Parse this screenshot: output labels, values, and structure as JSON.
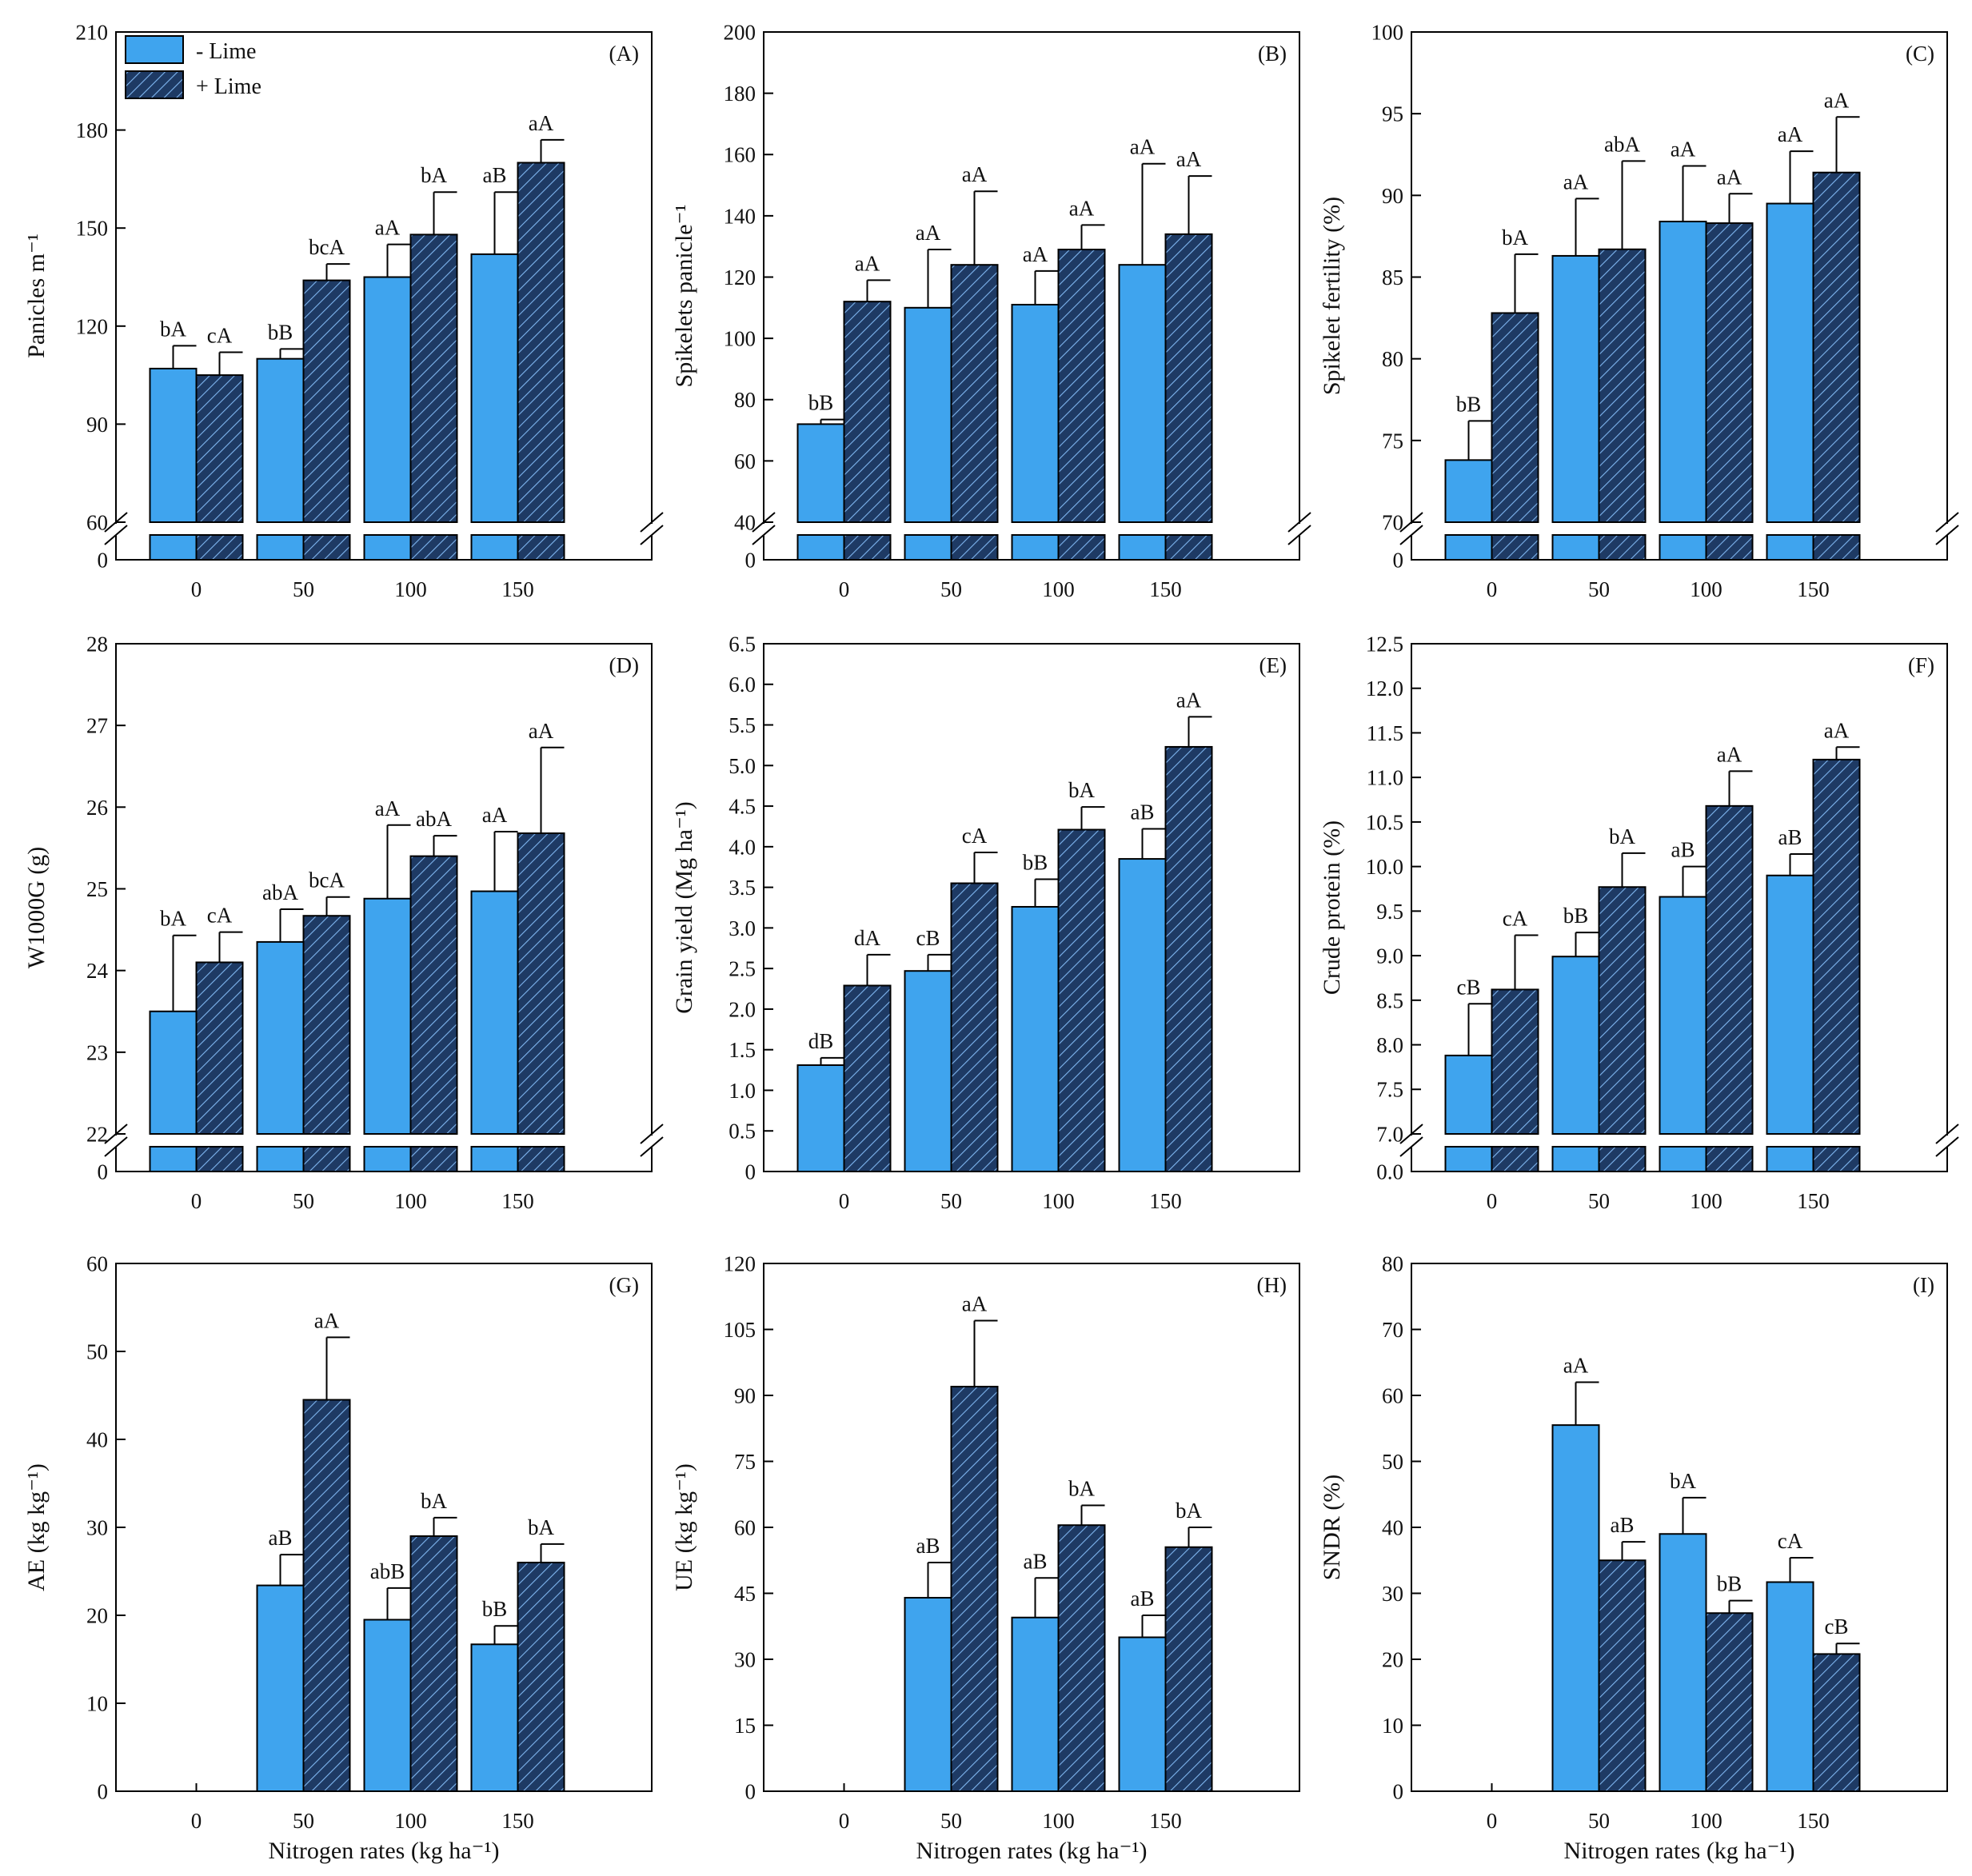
{
  "colors": {
    "minus_lime": "#3FA4EE",
    "plus_lime": "#1E3A64",
    "hatch_line": "#7FB6F0",
    "axis": "#000000"
  },
  "legend": {
    "minus": "- Lime",
    "plus": "+ Lime",
    "location": "top-left of panel A"
  },
  "chart_data": [
    {
      "id": "A",
      "panel_label": "(A)",
      "type": "bar",
      "ylabel": "Panicles m⁻¹",
      "xlabel": "",
      "categories": [
        "0",
        "50",
        "100",
        "150"
      ],
      "ylim": [
        60,
        210
      ],
      "yticks": [
        "60",
        "90",
        "120",
        "150",
        "180",
        "210"
      ],
      "axis_break": true,
      "series": [
        {
          "name": "- Lime",
          "values": [
            107,
            110,
            135,
            142
          ],
          "errors": [
            7,
            3,
            10,
            19
          ],
          "letters": [
            "bA",
            "bB",
            "aA",
            "aB"
          ]
        },
        {
          "name": "+ Lime",
          "values": [
            105,
            134,
            148,
            170
          ],
          "errors": [
            7,
            5,
            13,
            7
          ],
          "letters": [
            "cA",
            "bcA",
            "bA",
            "aA"
          ]
        }
      ]
    },
    {
      "id": "B",
      "panel_label": "(B)",
      "type": "bar",
      "ylabel": "Spikelets panicle⁻¹",
      "xlabel": "",
      "categories": [
        "0",
        "50",
        "100",
        "150"
      ],
      "ylim": [
        40,
        200
      ],
      "yticks": [
        "40",
        "60",
        "80",
        "100",
        "120",
        "140",
        "160",
        "180",
        "200"
      ],
      "axis_break": true,
      "series": [
        {
          "name": "- Lime",
          "values": [
            72,
            110,
            111,
            124
          ],
          "errors": [
            1.5,
            19,
            11,
            33
          ],
          "letters": [
            "bB",
            "aA",
            "aA",
            "aA"
          ]
        },
        {
          "name": "+ Lime",
          "values": [
            112,
            124,
            129,
            134
          ],
          "errors": [
            7,
            24,
            8,
            19
          ],
          "letters": [
            "aA",
            "aA",
            "aA",
            "aA"
          ]
        }
      ]
    },
    {
      "id": "C",
      "panel_label": "(C)",
      "type": "bar",
      "ylabel": "Spikelet fertility (%)",
      "xlabel": "",
      "categories": [
        "0",
        "50",
        "100",
        "150"
      ],
      "ylim": [
        70,
        100
      ],
      "yticks": [
        "70",
        "75",
        "80",
        "85",
        "90",
        "95",
        "100"
      ],
      "axis_break": true,
      "series": [
        {
          "name": "- Lime",
          "values": [
            73.8,
            86.3,
            88.4,
            89.5
          ],
          "errors": [
            2.4,
            3.5,
            3.4,
            3.2
          ],
          "letters": [
            "bB",
            "aA",
            "aA",
            "aA"
          ]
        },
        {
          "name": "+ Lime",
          "values": [
            82.8,
            86.7,
            88.3,
            91.4
          ],
          "errors": [
            3.6,
            5.4,
            1.8,
            3.4
          ],
          "letters": [
            "bA",
            "abA",
            "aA",
            "aA"
          ]
        }
      ]
    },
    {
      "id": "D",
      "panel_label": "(D)",
      "type": "bar",
      "ylabel": "W1000G (g)",
      "xlabel": "",
      "categories": [
        "0",
        "50",
        "100",
        "150"
      ],
      "ylim": [
        22,
        28
      ],
      "yticks": [
        "22",
        "23",
        "24",
        "25",
        "26",
        "27",
        "28"
      ],
      "axis_break": true,
      "series": [
        {
          "name": "- Lime",
          "values": [
            23.5,
            24.35,
            24.88,
            24.97
          ],
          "errors": [
            0.93,
            0.4,
            0.9,
            0.73
          ],
          "letters": [
            "bA",
            "abA",
            "aA",
            "aA"
          ]
        },
        {
          "name": "+ Lime",
          "values": [
            24.1,
            24.67,
            25.4,
            25.68
          ],
          "errors": [
            0.37,
            0.23,
            0.25,
            1.05
          ],
          "letters": [
            "cA",
            "bcA",
            "abA",
            "aA"
          ]
        }
      ]
    },
    {
      "id": "E",
      "panel_label": "(E)",
      "type": "bar",
      "ylabel": "Grain yield (Mg ha⁻¹)",
      "xlabel": "",
      "categories": [
        "0",
        "50",
        "100",
        "150"
      ],
      "ylim": [
        0,
        6.5
      ],
      "yticks": [
        "0",
        "0.5",
        "1.0",
        "1.5",
        "2.0",
        "2.5",
        "3.0",
        "3.5",
        "4.0",
        "4.5",
        "5.0",
        "5.5",
        "6.0",
        "6.5"
      ],
      "axis_break": false,
      "series": [
        {
          "name": "- Lime",
          "values": [
            1.31,
            2.47,
            3.26,
            3.85
          ],
          "errors": [
            0.09,
            0.2,
            0.34,
            0.37
          ],
          "letters": [
            "dB",
            "cB",
            "bB",
            "aB"
          ]
        },
        {
          "name": "+ Lime",
          "values": [
            2.29,
            3.55,
            4.21,
            5.23
          ],
          "errors": [
            0.38,
            0.38,
            0.28,
            0.37
          ],
          "letters": [
            "dA",
            "cA",
            "bA",
            "aA"
          ]
        }
      ]
    },
    {
      "id": "F",
      "panel_label": "(F)",
      "type": "bar",
      "ylabel": "Crude protein (%)",
      "xlabel": "",
      "categories": [
        "0",
        "50",
        "100",
        "150"
      ],
      "ylim": [
        7.0,
        12.5
      ],
      "yticks": [
        "7.0",
        "7.5",
        "8.0",
        "8.5",
        "9.0",
        "9.5",
        "10.0",
        "10.5",
        "11.0",
        "11.5",
        "12.0",
        "12.5"
      ],
      "axis_break": true,
      "series": [
        {
          "name": "- Lime",
          "values": [
            7.88,
            8.99,
            9.66,
            9.9
          ],
          "errors": [
            0.58,
            0.27,
            0.34,
            0.24
          ],
          "letters": [
            "cB",
            "bB",
            "aB",
            "aB"
          ]
        },
        {
          "name": "+ Lime",
          "values": [
            8.62,
            9.77,
            10.68,
            11.2
          ],
          "errors": [
            0.61,
            0.38,
            0.39,
            0.14
          ],
          "letters": [
            "cA",
            "bA",
            "aA",
            "aA"
          ]
        }
      ]
    },
    {
      "id": "G",
      "panel_label": "(G)",
      "type": "bar",
      "ylabel": "AE (kg kg⁻¹)",
      "xlabel": "Nitrogen rates (kg ha⁻¹)",
      "categories": [
        "0",
        "50",
        "100",
        "150"
      ],
      "ylim": [
        0,
        60
      ],
      "yticks": [
        "0",
        "10",
        "20",
        "30",
        "40",
        "50",
        "60"
      ],
      "axis_break": false,
      "series": [
        {
          "name": "- Lime",
          "values": [
            null,
            23.4,
            19.5,
            16.7
          ],
          "errors": [
            null,
            3.5,
            3.6,
            2.1
          ],
          "letters": [
            "",
            "aB",
            "abB",
            "bB"
          ]
        },
        {
          "name": "+ Lime",
          "values": [
            null,
            44.5,
            29.0,
            26.0
          ],
          "errors": [
            null,
            7.1,
            2.1,
            2.1
          ],
          "letters": [
            "",
            "aA",
            "bA",
            "bA"
          ]
        }
      ]
    },
    {
      "id": "H",
      "panel_label": "(H)",
      "type": "bar",
      "ylabel": "UE (kg kg⁻¹)",
      "xlabel": "Nitrogen rates (kg ha⁻¹)",
      "categories": [
        "0",
        "50",
        "100",
        "150"
      ],
      "ylim": [
        0,
        120
      ],
      "yticks": [
        "0",
        "15",
        "30",
        "45",
        "60",
        "75",
        "90",
        "105",
        "120"
      ],
      "axis_break": false,
      "series": [
        {
          "name": "- Lime",
          "values": [
            null,
            44,
            39.5,
            35
          ],
          "errors": [
            null,
            8,
            9,
            5
          ],
          "letters": [
            "",
            "aB",
            "aB",
            "aB"
          ]
        },
        {
          "name": "+ Lime",
          "values": [
            null,
            92,
            60.5,
            55.5
          ],
          "errors": [
            null,
            15,
            4.5,
            4.5
          ],
          "letters": [
            "",
            "aA",
            "bA",
            "bA"
          ]
        }
      ]
    },
    {
      "id": "I",
      "panel_label": "(I)",
      "type": "bar",
      "ylabel": "SNDR (%)",
      "xlabel": "Nitrogen rates (kg ha⁻¹)",
      "categories": [
        "0",
        "50",
        "100",
        "150"
      ],
      "ylim": [
        0,
        80
      ],
      "yticks": [
        "0",
        "10",
        "20",
        "30",
        "40",
        "50",
        "60",
        "70",
        "80"
      ],
      "axis_break": false,
      "series": [
        {
          "name": "- Lime",
          "values": [
            null,
            55.5,
            39.0,
            31.7
          ],
          "errors": [
            null,
            6.5,
            5.5,
            3.7
          ],
          "letters": [
            "",
            "aA",
            "bA",
            "cA"
          ]
        },
        {
          "name": "+ Lime",
          "values": [
            null,
            35.0,
            27.0,
            20.8
          ],
          "errors": [
            null,
            2.8,
            1.9,
            1.6
          ],
          "letters": [
            "",
            "aB",
            "bB",
            "cB"
          ]
        }
      ]
    }
  ]
}
